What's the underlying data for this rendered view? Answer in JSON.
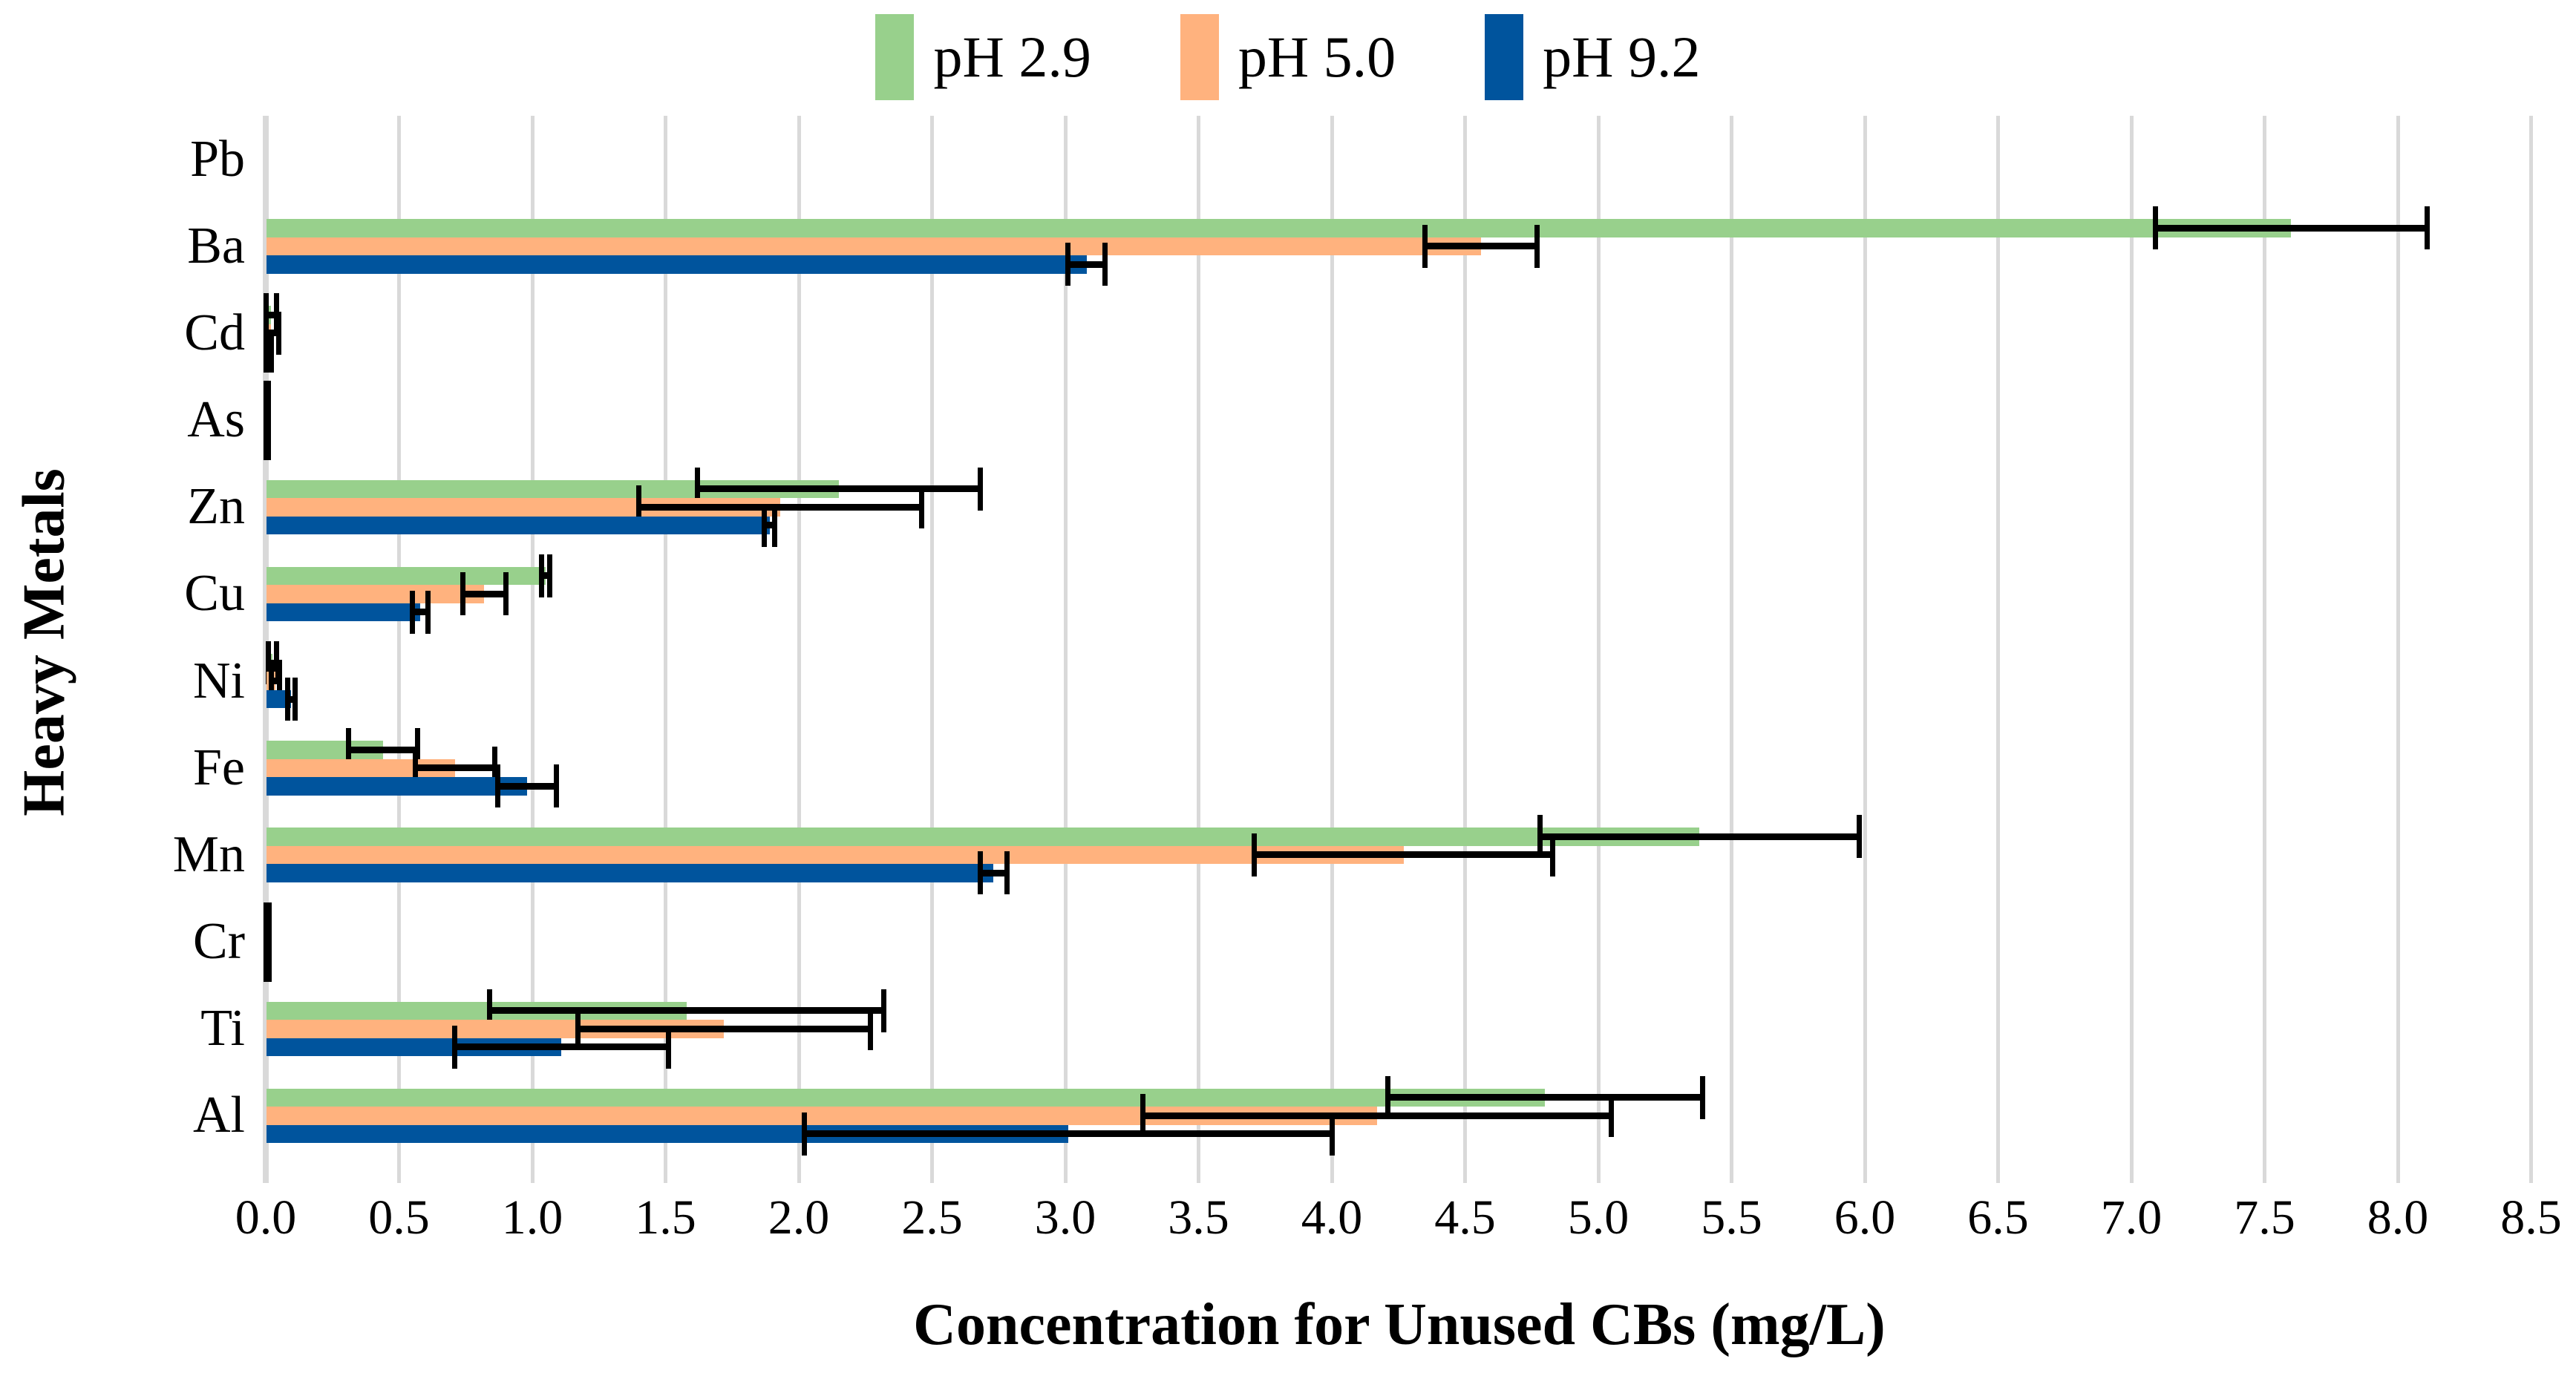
{
  "chart_data": {
    "type": "bar",
    "orientation": "horizontal",
    "title": "",
    "xlabel": "Concentration for Unused CBs (mg/L)",
    "ylabel": "Heavy Metals",
    "xlim": [
      0.0,
      8.5
    ],
    "xtick_step": 0.5,
    "xticklabels": [
      "0.0",
      "0.5",
      "1.0",
      "1.5",
      "2.0",
      "2.5",
      "3.0",
      "3.5",
      "4.0",
      "4.5",
      "5.0",
      "5.5",
      "6.0",
      "6.5",
      "7.0",
      "7.5",
      "8.0",
      "8.5"
    ],
    "grid": true,
    "gridline_color": "#D9D9D9",
    "error_bar_color": "#000000",
    "legend_position": "top",
    "categories": [
      "Pb",
      "Ba",
      "Cd",
      "As",
      "Zn",
      "Cu",
      "Ni",
      "Fe",
      "Mn",
      "Cr",
      "Ti",
      "Al"
    ],
    "series": [
      {
        "name": "pH 2.9",
        "color": "#98D08C",
        "values": [
          0,
          7.6,
          0.02,
          0.005,
          2.15,
          1.05,
          0.025,
          0.44,
          5.38,
          0.005,
          1.58,
          4.8
        ],
        "errors": [
          0,
          0.51,
          0.02,
          0.005,
          0.53,
          0.015,
          0.015,
          0.13,
          0.6,
          0.008,
          0.74,
          0.59
        ]
      },
      {
        "name": "pH 5.0",
        "color": "#FFB27E",
        "values": [
          0,
          4.56,
          0.02,
          0.005,
          1.93,
          0.82,
          0.037,
          0.71,
          4.27,
          0.005,
          1.72,
          4.17
        ],
        "errors": [
          0,
          0.21,
          0.03,
          0.005,
          0.53,
          0.08,
          0.015,
          0.15,
          0.56,
          0.008,
          0.55,
          0.88
        ]
      },
      {
        "name": "pH 9.2",
        "color": "#00549D",
        "values": [
          0,
          3.08,
          0.01,
          0.005,
          1.89,
          0.58,
          0.096,
          0.98,
          2.73,
          0.005,
          1.11,
          3.01
        ],
        "errors": [
          0,
          0.07,
          0.01,
          0.005,
          0.02,
          0.03,
          0.015,
          0.11,
          0.05,
          0.008,
          0.4,
          0.99
        ]
      }
    ]
  }
}
